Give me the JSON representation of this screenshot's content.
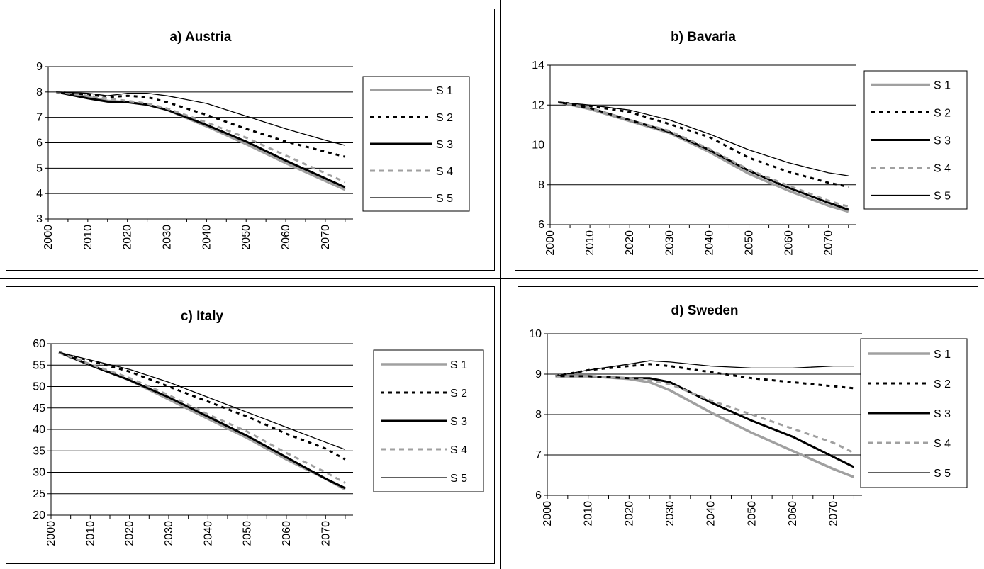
{
  "chart_data": [
    {
      "type": "line",
      "title": "a) Austria",
      "xlabel": "",
      "ylabel": "",
      "ylim": [
        3,
        9
      ],
      "yticks": [
        3,
        4,
        5,
        6,
        7,
        8,
        9
      ],
      "xlim": [
        2000,
        2077
      ],
      "xticks": [
        2000,
        2010,
        2020,
        2030,
        2040,
        2050,
        2060,
        2070
      ],
      "grid": "horizontal",
      "legend": "right",
      "series": [
        {
          "name": "S 1",
          "x": [
            2002,
            2010,
            2015,
            2020,
            2025,
            2030,
            2040,
            2050,
            2060,
            2070,
            2075
          ],
          "y": [
            8.0,
            7.8,
            7.65,
            7.6,
            7.5,
            7.3,
            6.65,
            5.95,
            5.2,
            4.5,
            4.15
          ]
        },
        {
          "name": "S 2",
          "x": [
            2002,
            2010,
            2015,
            2020,
            2025,
            2030,
            2040,
            2050,
            2060,
            2070,
            2075
          ],
          "y": [
            8.0,
            7.9,
            7.8,
            7.85,
            7.8,
            7.6,
            7.1,
            6.55,
            6.05,
            5.65,
            5.45
          ]
        },
        {
          "name": "S 3",
          "x": [
            2002,
            2010,
            2015,
            2020,
            2025,
            2030,
            2040,
            2050,
            2060,
            2070,
            2075
          ],
          "y": [
            8.0,
            7.75,
            7.62,
            7.6,
            7.5,
            7.3,
            6.7,
            6.05,
            5.3,
            4.6,
            4.25
          ]
        },
        {
          "name": "S 4",
          "x": [
            2002,
            2010,
            2015,
            2020,
            2025,
            2030,
            2040,
            2050,
            2060,
            2070,
            2075
          ],
          "y": [
            8.0,
            7.85,
            7.75,
            7.65,
            7.55,
            7.35,
            6.8,
            6.2,
            5.5,
            4.8,
            4.45
          ]
        },
        {
          "name": "S 5",
          "x": [
            2002,
            2010,
            2015,
            2020,
            2025,
            2030,
            2040,
            2050,
            2060,
            2070,
            2075
          ],
          "y": [
            8.0,
            7.95,
            7.85,
            7.95,
            7.95,
            7.85,
            7.55,
            7.05,
            6.55,
            6.1,
            5.9
          ]
        }
      ]
    },
    {
      "type": "line",
      "title": "b) Bavaria",
      "xlabel": "",
      "ylabel": "",
      "ylim": [
        6,
        14
      ],
      "yticks": [
        6,
        8,
        10,
        12,
        14
      ],
      "xlim": [
        2000,
        2077
      ],
      "xticks": [
        2000,
        2010,
        2020,
        2030,
        2040,
        2050,
        2060,
        2070
      ],
      "grid": "horizontal",
      "legend": "right",
      "series": [
        {
          "name": "S 1",
          "x": [
            2002,
            2010,
            2020,
            2030,
            2040,
            2050,
            2060,
            2070,
            2075
          ],
          "y": [
            12.15,
            11.8,
            11.2,
            10.6,
            9.65,
            8.55,
            7.7,
            6.95,
            6.65
          ]
        },
        {
          "name": "S 2",
          "x": [
            2002,
            2010,
            2020,
            2030,
            2040,
            2050,
            2060,
            2070,
            2075
          ],
          "y": [
            12.15,
            11.95,
            11.65,
            11.05,
            10.4,
            9.35,
            8.65,
            8.1,
            7.9
          ]
        },
        {
          "name": "S 3",
          "x": [
            2002,
            2010,
            2020,
            2030,
            2040,
            2050,
            2060,
            2070,
            2075
          ],
          "y": [
            12.15,
            11.85,
            11.25,
            10.65,
            9.75,
            8.7,
            7.85,
            7.1,
            6.75
          ]
        },
        {
          "name": "S 4",
          "x": [
            2002,
            2010,
            2020,
            2030,
            2040,
            2050,
            2060,
            2070,
            2075
          ],
          "y": [
            12.15,
            11.85,
            11.25,
            10.7,
            9.8,
            8.75,
            7.95,
            7.2,
            6.9
          ]
        },
        {
          "name": "S 5",
          "x": [
            2002,
            2010,
            2020,
            2030,
            2040,
            2050,
            2060,
            2070,
            2075
          ],
          "y": [
            12.15,
            12.0,
            11.75,
            11.25,
            10.55,
            9.75,
            9.1,
            8.6,
            8.45
          ]
        }
      ]
    },
    {
      "type": "line",
      "title": "c) Italy",
      "xlabel": "",
      "ylabel": "",
      "ylim": [
        20,
        60
      ],
      "yticks": [
        20,
        25,
        30,
        35,
        40,
        45,
        50,
        55,
        60
      ],
      "xlim": [
        2000,
        2077
      ],
      "xticks": [
        2000,
        2010,
        2020,
        2030,
        2040,
        2050,
        2060,
        2070
      ],
      "grid": "horizontal",
      "legend": "right",
      "series": [
        {
          "name": "S 1",
          "x": [
            2002,
            2010,
            2020,
            2030,
            2040,
            2050,
            2060,
            2070,
            2075
          ],
          "y": [
            58.0,
            55.0,
            51.5,
            47.0,
            42.5,
            38.0,
            33.0,
            28.5,
            26.0
          ]
        },
        {
          "name": "S 2",
          "x": [
            2002,
            2010,
            2020,
            2030,
            2040,
            2050,
            2060,
            2070,
            2075
          ],
          "y": [
            58.0,
            56.0,
            53.5,
            50.0,
            46.5,
            43.0,
            39.0,
            35.5,
            33.0
          ]
        },
        {
          "name": "S 3",
          "x": [
            2002,
            2010,
            2020,
            2030,
            2040,
            2050,
            2060,
            2070,
            2075
          ],
          "y": [
            58.0,
            55.0,
            51.5,
            47.5,
            43.0,
            38.5,
            33.5,
            28.5,
            26.3
          ]
        },
        {
          "name": "S 4",
          "x": [
            2002,
            2010,
            2020,
            2030,
            2040,
            2050,
            2060,
            2070,
            2075
          ],
          "y": [
            58.0,
            55.2,
            52.0,
            48.0,
            43.5,
            39.5,
            34.5,
            30.0,
            27.5
          ]
        },
        {
          "name": "S 5",
          "x": [
            2002,
            2010,
            2020,
            2030,
            2040,
            2050,
            2060,
            2070,
            2075
          ],
          "y": [
            58.0,
            56.2,
            54.0,
            51.0,
            47.5,
            44.0,
            40.5,
            37.0,
            35.3
          ]
        }
      ]
    },
    {
      "type": "line",
      "title": "d) Sweden",
      "xlabel": "",
      "ylabel": "",
      "ylim": [
        6,
        10
      ],
      "yticks": [
        6,
        7,
        8,
        9,
        10
      ],
      "xlim": [
        2000,
        2077
      ],
      "xticks": [
        2000,
        2010,
        2020,
        2030,
        2040,
        2050,
        2060,
        2070
      ],
      "grid": "horizontal",
      "legend": "right",
      "series": [
        {
          "name": "S 1",
          "x": [
            2002,
            2010,
            2020,
            2025,
            2030,
            2040,
            2050,
            2060,
            2070,
            2075
          ],
          "y": [
            8.95,
            8.95,
            8.88,
            8.8,
            8.6,
            8.05,
            7.55,
            7.1,
            6.65,
            6.45
          ]
        },
        {
          "name": "S 2",
          "x": [
            2002,
            2010,
            2020,
            2025,
            2030,
            2040,
            2050,
            2060,
            2070,
            2075
          ],
          "y": [
            8.95,
            9.1,
            9.2,
            9.25,
            9.2,
            9.05,
            8.9,
            8.8,
            8.7,
            8.65
          ]
        },
        {
          "name": "S 3",
          "x": [
            2002,
            2010,
            2020,
            2025,
            2030,
            2040,
            2050,
            2060,
            2070,
            2075
          ],
          "y": [
            8.95,
            8.95,
            8.9,
            8.9,
            8.8,
            8.3,
            7.85,
            7.45,
            6.95,
            6.7
          ]
        },
        {
          "name": "S 4",
          "x": [
            2002,
            2010,
            2020,
            2025,
            2030,
            2040,
            2050,
            2060,
            2070,
            2075
          ],
          "y": [
            8.95,
            8.95,
            8.9,
            8.85,
            8.75,
            8.35,
            8.0,
            7.65,
            7.3,
            7.05
          ]
        },
        {
          "name": "S 5",
          "x": [
            2002,
            2010,
            2020,
            2025,
            2030,
            2040,
            2050,
            2060,
            2070,
            2075
          ],
          "y": [
            8.95,
            9.1,
            9.25,
            9.33,
            9.3,
            9.2,
            9.15,
            9.15,
            9.2,
            9.2
          ]
        }
      ]
    }
  ],
  "styles": {
    "S 1": {
      "color": "#a0a0a0",
      "width": 3.5,
      "dash": ""
    },
    "S 2": {
      "color": "#000000",
      "width": 3,
      "dash": "5 6"
    },
    "S 3": {
      "color": "#000000",
      "width": 3,
      "dash": ""
    },
    "S 4": {
      "color": "#a0a0a0",
      "width": 3,
      "dash": "7 6"
    },
    "S 5": {
      "color": "#000000",
      "width": 1.3,
      "dash": ""
    }
  }
}
